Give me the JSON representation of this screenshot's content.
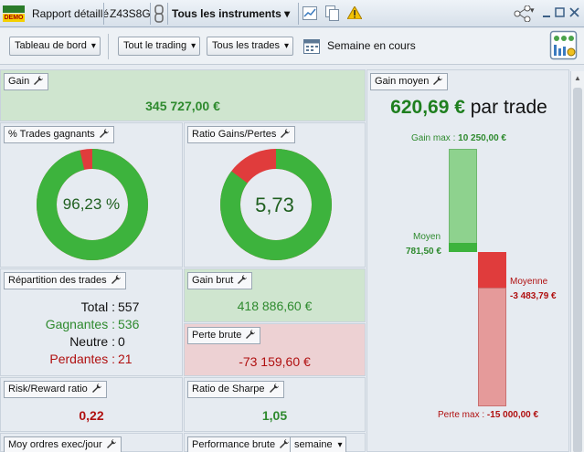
{
  "header": {
    "demo_label": "DEMO",
    "report_title": "Rapport détaillé",
    "account_id": "Z43S8G",
    "instruments_dropdown": "Tous les instruments"
  },
  "toolbar": {
    "dashboard_dropdown": "Tableau de bord",
    "trading_dropdown": "Tout le trading",
    "trades_dropdown": "Tous les trades",
    "period_label": "Semaine en cours"
  },
  "panels": {
    "gain": {
      "title": "Gain",
      "value": "345 727,00 €"
    },
    "win_trades": {
      "title": "% Trades gagnants",
      "value": "96,23 %",
      "fraction": 0.9623
    },
    "ratio_gl": {
      "title": "Ratio Gains/Pertes",
      "value": "5,73",
      "fraction": 0.851
    },
    "avg_gain": {
      "title": "Gain moyen",
      "headline_value": "620,69 €",
      "headline_suffix": " par trade",
      "gain_max_label": "Gain max :",
      "gain_max_value": "10 250,00 €",
      "gain_max_amount": 10250,
      "avg_win_label": "Moyen",
      "avg_win_value": "781,50 €",
      "avg_win_amount": 781.5,
      "avg_loss_label": "Moyenne",
      "avg_loss_value": "-3 483,79 €",
      "avg_loss_amount": 3483.79,
      "loss_max_label": "Perte max :",
      "loss_max_value": "-15 000,00 €",
      "loss_max_amount": 15000
    },
    "distribution": {
      "title": "Répartition des trades",
      "rows": [
        {
          "label": "Total :",
          "value": "557",
          "color": "#111111"
        },
        {
          "label": "Gagnantes :",
          "value": "536",
          "color": "#2e8a2e"
        },
        {
          "label": "Neutre :",
          "value": "0",
          "color": "#111111"
        },
        {
          "label": "Perdantes :",
          "value": "21",
          "color": "#b01010"
        }
      ]
    },
    "gross_gain": {
      "title": "Gain brut",
      "value": "418 886,60 €"
    },
    "gross_loss": {
      "title": "Perte brute",
      "value": "-73 159,60 €"
    },
    "risk_reward": {
      "title": "Risk/Reward ratio",
      "value": "0,22"
    },
    "sharpe": {
      "title": "Ratio de Sharpe",
      "value": "1,05"
    },
    "avg_orders": {
      "title": "Moy ordres exec/jour"
    },
    "gross_perf": {
      "title": "Performance brute",
      "period_dropdown": "semaine"
    }
  },
  "colors": {
    "green": "#3db33d",
    "red": "#e03c3c",
    "light_green": "#8ed28e",
    "light_red": "#e59a9a"
  }
}
